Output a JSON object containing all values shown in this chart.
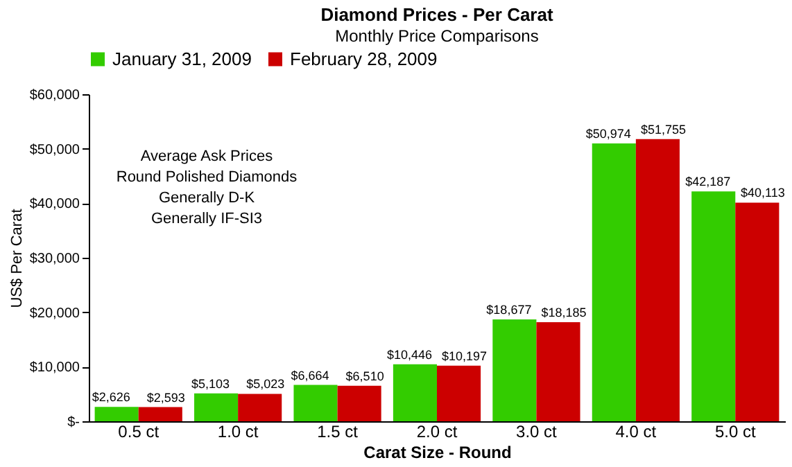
{
  "chart_data": {
    "type": "bar",
    "title": "Diamond Prices - Per Carat",
    "subtitle": "Monthly Price Comparisons",
    "xlabel": "Carat Size - Round",
    "ylabel": "US$ Per Carat",
    "categories": [
      "0.5 ct",
      "1.0 ct",
      "1.5 ct",
      "2.0 ct",
      "3.0 ct",
      "4.0 ct",
      "5.0 ct"
    ],
    "series": [
      {
        "name": "January 31, 2009",
        "color": "#33cc00",
        "values": [
          2626,
          5103,
          6664,
          10446,
          18677,
          50974,
          42187
        ],
        "value_labels": [
          "$2,626",
          "$5,103",
          "$6,664",
          "$10,446",
          "$18,677",
          "$50,974",
          "$42,187"
        ]
      },
      {
        "name": "February 28, 2009",
        "color": "#cc0000",
        "values": [
          2593,
          5023,
          6510,
          10197,
          18185,
          51755,
          40113
        ],
        "value_labels": [
          "$2,593",
          "$5,023",
          "$6,510",
          "$10,197",
          "$18,185",
          "$51,755",
          "$40,113"
        ]
      }
    ],
    "ylim": [
      0,
      60000
    ],
    "yticks": [
      {
        "value": 0,
        "label": "$-"
      },
      {
        "value": 10000,
        "label": "$10,000"
      },
      {
        "value": 20000,
        "label": "$20,000"
      },
      {
        "value": 30000,
        "label": "$30,000"
      },
      {
        "value": 40000,
        "label": "$40,000"
      },
      {
        "value": 50000,
        "label": "$50,000"
      },
      {
        "value": 60000,
        "label": "$60,000"
      }
    ],
    "annotations": [
      "Average Ask Prices",
      "Round Polished Diamonds",
      "Generally D-K",
      "Generally IF-SI3"
    ],
    "legend": "top",
    "grid": false
  }
}
